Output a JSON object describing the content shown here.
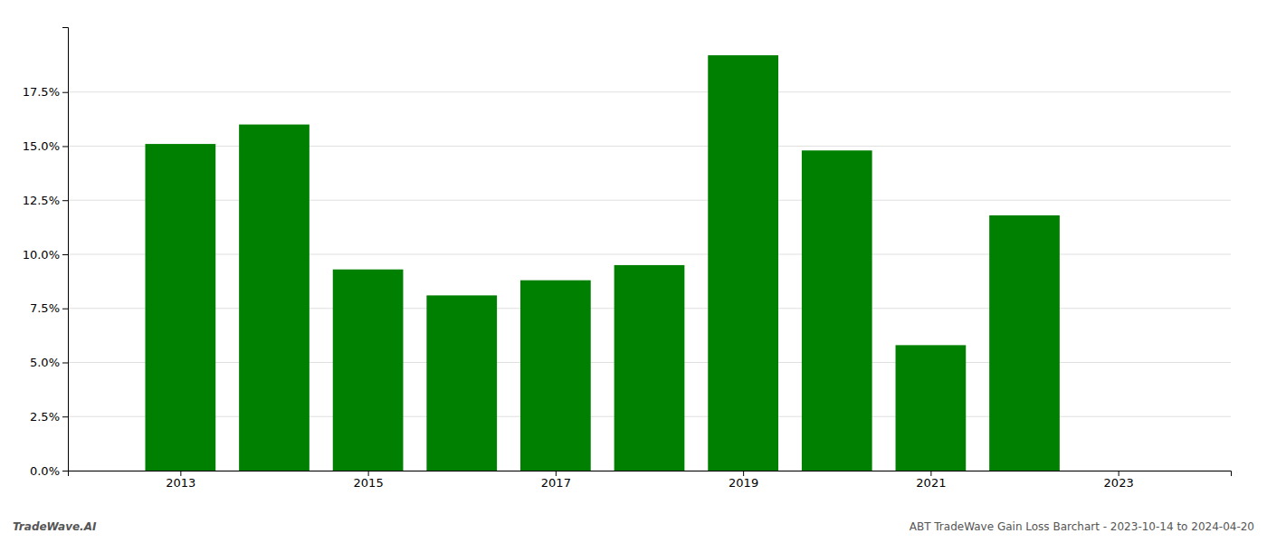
{
  "chart_data": {
    "type": "bar",
    "x": [
      2013,
      2014,
      2015,
      2016,
      2017,
      2018,
      2019,
      2020,
      2021,
      2022
    ],
    "values": [
      0.151,
      0.16,
      0.093,
      0.081,
      0.088,
      0.095,
      0.192,
      0.148,
      0.058,
      0.118
    ],
    "color": "#008000",
    "xlim": [
      2011.8,
      2024.2
    ],
    "xticks": [
      2013,
      2015,
      2017,
      2019,
      2021,
      2023
    ],
    "ylim": [
      0,
      0.205
    ],
    "yticks": [
      {
        "value": 0.0,
        "label": "0.0%"
      },
      {
        "value": 0.025,
        "label": "2.5%"
      },
      {
        "value": 0.05,
        "label": "5.0%"
      },
      {
        "value": 0.075,
        "label": "7.5%"
      },
      {
        "value": 0.1,
        "label": "10.0%"
      },
      {
        "value": 0.125,
        "label": "12.5%"
      },
      {
        "value": 0.15,
        "label": "15.0%"
      },
      {
        "value": 0.175,
        "label": "17.5%"
      }
    ],
    "grid": true,
    "annotations": [
      "TradeWave.AI",
      "ABT TradeWave Gain Loss Barchart - 2023-10-14 to 2024-04-20"
    ]
  }
}
